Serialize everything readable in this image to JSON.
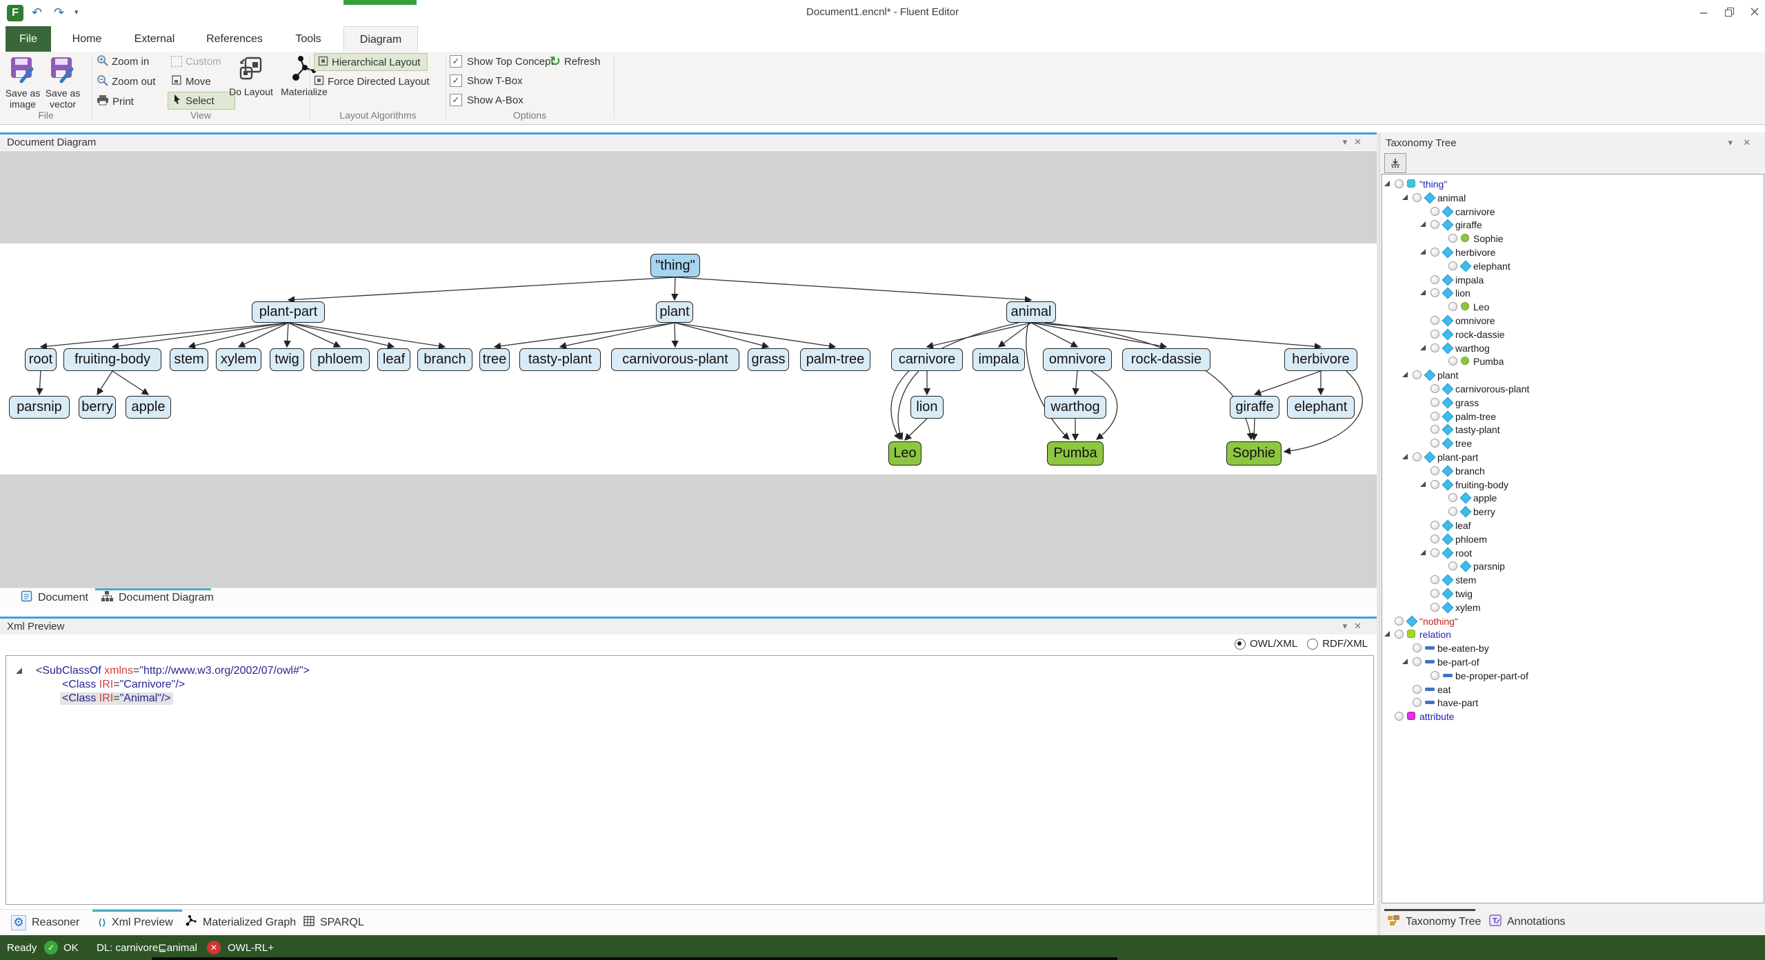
{
  "titlebar": {
    "title": "Document1.encnl* - Fluent Editor"
  },
  "tabs": {
    "file": "File",
    "items": [
      "Home",
      "External",
      "References",
      "Tools"
    ],
    "active": "Diagram"
  },
  "ribbon": {
    "save_image": "Save as image",
    "save_vector": "Save as vector",
    "print": "Print",
    "zoom_in": "Zoom in",
    "zoom_out": "Zoom out",
    "custom": "Custom",
    "move": "Move",
    "select": "Select",
    "do_layout": "Do Layout",
    "materialize": "Materialize",
    "hierarchical": "Hierarchical Layout",
    "force_directed": "Force Directed Layout",
    "show_top_concept": "Show Top Concept",
    "show_tbox": "Show T-Box",
    "show_abox": "Show A-Box",
    "refresh": "Refresh",
    "group_file": "File",
    "group_view": "View",
    "group_layout": "Layout Algorithms",
    "group_options": "Options"
  },
  "diagram_panel": {
    "title": "Document Diagram"
  },
  "doc_tabs": {
    "document": "Document",
    "document_diagram": "Document Diagram"
  },
  "diagram": {
    "nodes": [
      {
        "id": "thing",
        "label": "\"thing\"",
        "type": "root"
      },
      {
        "id": "plant-part",
        "label": "plant-part",
        "type": "class"
      },
      {
        "id": "plant",
        "label": "plant",
        "type": "class"
      },
      {
        "id": "animal",
        "label": "animal",
        "type": "class"
      },
      {
        "id": "root",
        "label": "root",
        "type": "class"
      },
      {
        "id": "fruiting-body",
        "label": "fruiting-body",
        "type": "class"
      },
      {
        "id": "stem",
        "label": "stem",
        "type": "class"
      },
      {
        "id": "xylem",
        "label": "xylem",
        "type": "class"
      },
      {
        "id": "twig",
        "label": "twig",
        "type": "class"
      },
      {
        "id": "phloem",
        "label": "phloem",
        "type": "class"
      },
      {
        "id": "leaf",
        "label": "leaf",
        "type": "class"
      },
      {
        "id": "branch",
        "label": "branch",
        "type": "class"
      },
      {
        "id": "tree",
        "label": "tree",
        "type": "class"
      },
      {
        "id": "tasty-plant",
        "label": "tasty-plant",
        "type": "class"
      },
      {
        "id": "carnivorous-plant",
        "label": "carnivorous-plant",
        "type": "class"
      },
      {
        "id": "grass",
        "label": "grass",
        "type": "class"
      },
      {
        "id": "palm-tree",
        "label": "palm-tree",
        "type": "class"
      },
      {
        "id": "carnivore",
        "label": "carnivore",
        "type": "class"
      },
      {
        "id": "impala",
        "label": "impala",
        "type": "class"
      },
      {
        "id": "omnivore",
        "label": "omnivore",
        "type": "class"
      },
      {
        "id": "rock-dassie",
        "label": "rock-dassie",
        "type": "class"
      },
      {
        "id": "herbivore",
        "label": "herbivore",
        "type": "class"
      },
      {
        "id": "parsnip",
        "label": "parsnip",
        "type": "class"
      },
      {
        "id": "berry",
        "label": "berry",
        "type": "class"
      },
      {
        "id": "apple",
        "label": "apple",
        "type": "class"
      },
      {
        "id": "lion",
        "label": "lion",
        "type": "class"
      },
      {
        "id": "warthog",
        "label": "warthog",
        "type": "class"
      },
      {
        "id": "giraffe",
        "label": "giraffe",
        "type": "class"
      },
      {
        "id": "elephant",
        "label": "elephant",
        "type": "class"
      },
      {
        "id": "Leo",
        "label": "Leo",
        "type": "instance"
      },
      {
        "id": "Pumba",
        "label": "Pumba",
        "type": "instance"
      },
      {
        "id": "Sophie",
        "label": "Sophie",
        "type": "instance"
      }
    ],
    "edges": [
      [
        "thing",
        "plant-part"
      ],
      [
        "thing",
        "plant"
      ],
      [
        "thing",
        "animal"
      ],
      [
        "plant-part",
        "root"
      ],
      [
        "plant-part",
        "fruiting-body"
      ],
      [
        "plant-part",
        "stem"
      ],
      [
        "plant-part",
        "xylem"
      ],
      [
        "plant-part",
        "twig"
      ],
      [
        "plant-part",
        "phloem"
      ],
      [
        "plant-part",
        "leaf"
      ],
      [
        "plant-part",
        "branch"
      ],
      [
        "plant",
        "tree"
      ],
      [
        "plant",
        "tasty-plant"
      ],
      [
        "plant",
        "carnivorous-plant"
      ],
      [
        "plant",
        "grass"
      ],
      [
        "plant",
        "palm-tree"
      ],
      [
        "animal",
        "carnivore"
      ],
      [
        "animal",
        "impala"
      ],
      [
        "animal",
        "omnivore"
      ],
      [
        "animal",
        "rock-dassie"
      ],
      [
        "animal",
        "herbivore"
      ],
      [
        "root",
        "parsnip"
      ],
      [
        "fruiting-body",
        "berry"
      ],
      [
        "fruiting-body",
        "apple"
      ],
      [
        "carnivore",
        "lion"
      ],
      [
        "lion",
        "Leo"
      ],
      [
        "carnivore",
        "Leo"
      ],
      [
        "animal",
        "Leo"
      ],
      [
        "omnivore",
        "warthog"
      ],
      [
        "warthog",
        "Pumba"
      ],
      [
        "omnivore",
        "Pumba"
      ],
      [
        "animal",
        "Pumba"
      ],
      [
        "herbivore",
        "giraffe"
      ],
      [
        "herbivore",
        "elephant"
      ],
      [
        "giraffe",
        "Sophie"
      ],
      [
        "herbivore",
        "Sophie"
      ],
      [
        "animal",
        "Sophie"
      ]
    ]
  },
  "xml_panel": {
    "title": "Xml Preview",
    "radio_owl": "OWL/XML",
    "radio_rdf": "RDF/XML",
    "lines": [
      {
        "expander": true,
        "indent": 0,
        "highlight": false,
        "tokens": [
          [
            "tag",
            "<SubClassOf "
          ],
          [
            "attr",
            "xmlns"
          ],
          [
            "eq",
            "="
          ],
          [
            "val",
            "\"http://www.w3.org/2002/07/owl#\""
          ],
          [
            "tag",
            ">"
          ]
        ]
      },
      {
        "expander": false,
        "indent": 1,
        "highlight": false,
        "tokens": [
          [
            "tag",
            "<Class "
          ],
          [
            "attr",
            "IRI"
          ],
          [
            "eq",
            "="
          ],
          [
            "val",
            "\"Carnivore\""
          ],
          [
            "tag",
            "/>"
          ]
        ]
      },
      {
        "expander": false,
        "indent": 1,
        "highlight": true,
        "tokens": [
          [
            "tag",
            "<Class "
          ],
          [
            "attr",
            "IRI"
          ],
          [
            "eq",
            "="
          ],
          [
            "val",
            "\"Animal\""
          ],
          [
            "tag",
            "/>"
          ]
        ]
      }
    ]
  },
  "bottom_tabs": {
    "reasoner": "Reasoner",
    "xml_preview": "Xml Preview",
    "materialized_graph": "Materialized Graph",
    "sparql": "SPARQL"
  },
  "taxonomy": {
    "title": "Taxonomy Tree",
    "items": [
      {
        "label": "\"thing\"",
        "level": 0,
        "icon": "cube-cyan",
        "expander": true,
        "cls": "blue"
      },
      {
        "label": "animal",
        "level": 1,
        "icon": "diamond",
        "expander": true,
        "cls": ""
      },
      {
        "label": "carnivore",
        "level": 2,
        "icon": "diamond",
        "expander": false,
        "cls": ""
      },
      {
        "label": "giraffe",
        "level": 2,
        "icon": "diamond",
        "expander": true,
        "cls": ""
      },
      {
        "label": "Sophie",
        "level": 3,
        "icon": "circle",
        "expander": false,
        "cls": ""
      },
      {
        "label": "herbivore",
        "level": 2,
        "icon": "diamond",
        "expander": true,
        "cls": ""
      },
      {
        "label": "elephant",
        "level": 3,
        "icon": "diamond",
        "expander": false,
        "cls": ""
      },
      {
        "label": "impala",
        "level": 2,
        "icon": "diamond",
        "expander": false,
        "cls": ""
      },
      {
        "label": "lion",
        "level": 2,
        "icon": "diamond",
        "expander": true,
        "cls": ""
      },
      {
        "label": "Leo",
        "level": 3,
        "icon": "circle",
        "expander": false,
        "cls": ""
      },
      {
        "label": "omnivore",
        "level": 2,
        "icon": "diamond",
        "expander": false,
        "cls": ""
      },
      {
        "label": "rock-dassie",
        "level": 2,
        "icon": "diamond",
        "expander": false,
        "cls": ""
      },
      {
        "label": "warthog",
        "level": 2,
        "icon": "diamond",
        "expander": true,
        "cls": ""
      },
      {
        "label": "Pumba",
        "level": 3,
        "icon": "circle",
        "expander": false,
        "cls": ""
      },
      {
        "label": "plant",
        "level": 1,
        "icon": "diamond",
        "expander": true,
        "cls": ""
      },
      {
        "label": "carnivorous-plant",
        "level": 2,
        "icon": "diamond",
        "expander": false,
        "cls": ""
      },
      {
        "label": "grass",
        "level": 2,
        "icon": "diamond",
        "expander": false,
        "cls": ""
      },
      {
        "label": "palm-tree",
        "level": 2,
        "icon": "diamond",
        "expander": false,
        "cls": ""
      },
      {
        "label": "tasty-plant",
        "level": 2,
        "icon": "diamond",
        "expander": false,
        "cls": ""
      },
      {
        "label": "tree",
        "level": 2,
        "icon": "diamond",
        "expander": false,
        "cls": ""
      },
      {
        "label": "plant-part",
        "level": 1,
        "icon": "diamond",
        "expander": true,
        "cls": ""
      },
      {
        "label": "branch",
        "level": 2,
        "icon": "diamond",
        "expander": false,
        "cls": ""
      },
      {
        "label": "fruiting-body",
        "level": 2,
        "icon": "diamond",
        "expander": true,
        "cls": ""
      },
      {
        "label": "apple",
        "level": 3,
        "icon": "diamond",
        "expander": false,
        "cls": ""
      },
      {
        "label": "berry",
        "level": 3,
        "icon": "diamond",
        "expander": false,
        "cls": ""
      },
      {
        "label": "leaf",
        "level": 2,
        "icon": "diamond",
        "expander": false,
        "cls": ""
      },
      {
        "label": "phloem",
        "level": 2,
        "icon": "diamond",
        "expander": false,
        "cls": ""
      },
      {
        "label": "root",
        "level": 2,
        "icon": "diamond",
        "expander": true,
        "cls": ""
      },
      {
        "label": "parsnip",
        "level": 3,
        "icon": "diamond",
        "expander": false,
        "cls": ""
      },
      {
        "label": "stem",
        "level": 2,
        "icon": "diamond",
        "expander": false,
        "cls": ""
      },
      {
        "label": "twig",
        "level": 2,
        "icon": "diamond",
        "expander": false,
        "cls": ""
      },
      {
        "label": "xylem",
        "level": 2,
        "icon": "diamond",
        "expander": false,
        "cls": ""
      },
      {
        "label": "\"nothing\"",
        "level": 0,
        "icon": "diamond",
        "expander": false,
        "cls": "red"
      },
      {
        "label": "relation",
        "level": 0,
        "icon": "cube-green",
        "expander": true,
        "cls": "blue"
      },
      {
        "label": "be-eaten-by",
        "level": 1,
        "icon": "bar",
        "expander": false,
        "cls": ""
      },
      {
        "label": "be-part-of",
        "level": 1,
        "icon": "bar",
        "expander": true,
        "cls": ""
      },
      {
        "label": "be-proper-part-of",
        "level": 2,
        "icon": "bar",
        "expander": false,
        "cls": ""
      },
      {
        "label": "eat",
        "level": 1,
        "icon": "bar",
        "expander": false,
        "cls": ""
      },
      {
        "label": "have-part",
        "level": 1,
        "icon": "bar",
        "expander": false,
        "cls": ""
      },
      {
        "label": "attribute",
        "level": 0,
        "icon": "cube-magenta",
        "expander": false,
        "cls": "blue"
      }
    ]
  },
  "right_tabs": {
    "taxonomy_tree": "Taxonomy Tree",
    "annotations": "Annotations"
  },
  "status": {
    "ready": "Ready",
    "ok": "OK",
    "dl": "DL: carnivore⊑animal",
    "profile": "OWL-RL+"
  },
  "colors": {
    "accent_green": "#35a03a",
    "file_tab": "#3a673a",
    "status_bg": "#2e5426",
    "node_blue": "#d9ebf7",
    "node_selected": "#a5d5f0",
    "node_instance": "#8dc63f",
    "panel_accent": "#3aa3df"
  }
}
